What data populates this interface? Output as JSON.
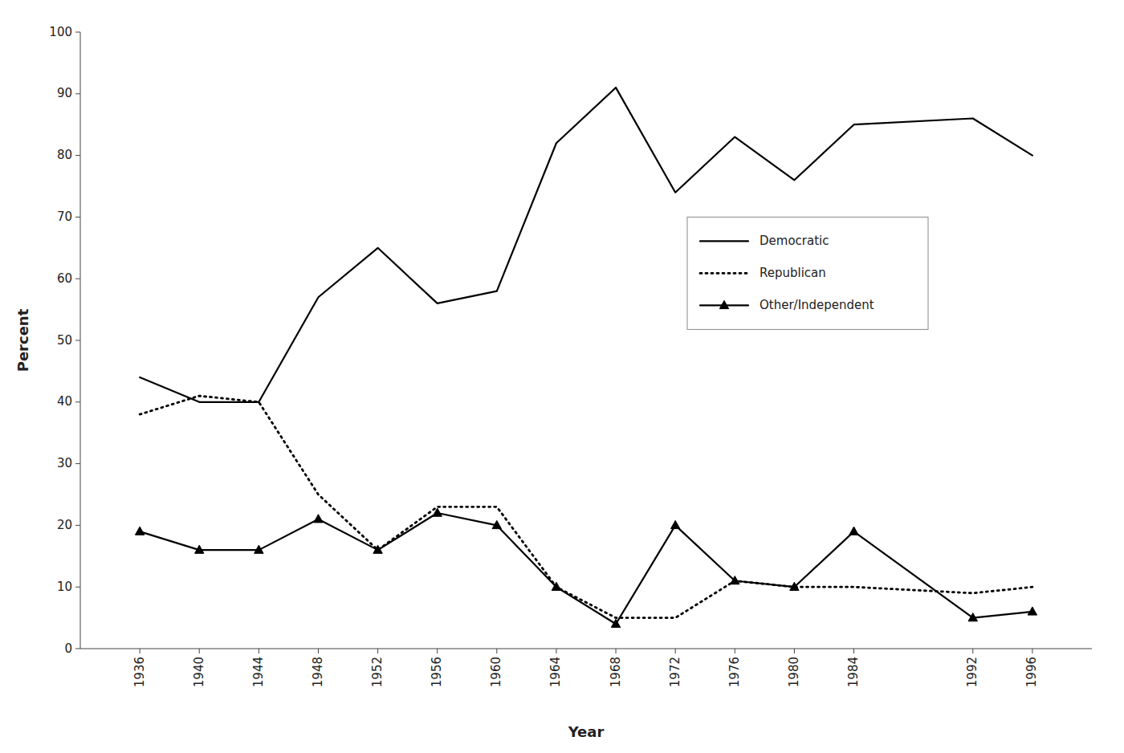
{
  "chart_data": {
    "type": "line",
    "x_label": "Year",
    "y_label": "Percent",
    "x": [
      1936,
      1940,
      1944,
      1948,
      1952,
      1956,
      1960,
      1964,
      1968,
      1972,
      1976,
      1980,
      1984,
      1992,
      1996
    ],
    "series": [
      {
        "name": "Democratic",
        "color": "#000000",
        "line_style": "solid",
        "marker": "none",
        "values": [
          44,
          40,
          40,
          57,
          65,
          56,
          58,
          82,
          91,
          74,
          83,
          76,
          85,
          86,
          80
        ]
      },
      {
        "name": "Republican",
        "color": "#000000",
        "line_style": "dotted",
        "marker": "none",
        "values": [
          38,
          41,
          40,
          25,
          16,
          23,
          23,
          10,
          5,
          5,
          11,
          10,
          10,
          9,
          10
        ]
      },
      {
        "name": "Other/Independent",
        "color": "#000000",
        "line_style": "solid",
        "marker": "triangle",
        "values": [
          19,
          16,
          16,
          21,
          16,
          22,
          20,
          10,
          4,
          20,
          11,
          10,
          19,
          5,
          6
        ]
      }
    ],
    "xlim": [
      1932,
      2000
    ],
    "xticks": [
      1936,
      1940,
      1944,
      1948,
      1952,
      1956,
      1960,
      1964,
      1968,
      1972,
      1976,
      1980,
      1984,
      1992,
      1996
    ],
    "ylim": [
      0,
      100
    ],
    "yticks": [
      0,
      10,
      20,
      30,
      40,
      50,
      60,
      70,
      80,
      90,
      100
    ],
    "grid": false,
    "legend": "right"
  }
}
